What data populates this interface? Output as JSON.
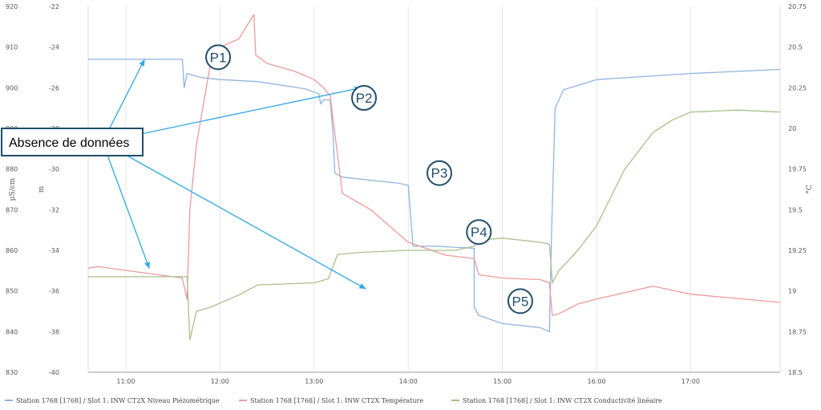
{
  "chart_data": {
    "type": "line",
    "x_axis": {
      "ticks": [
        "11:00",
        "12:00",
        "13:00",
        "14:00",
        "15:00",
        "16:00",
        "17:00"
      ],
      "tick_hours": [
        11,
        12,
        13,
        14,
        15,
        16,
        17
      ],
      "range_hours": [
        10.6,
        17.95
      ]
    },
    "y_axes": [
      {
        "id": "conductivity",
        "position": "left-outer",
        "label": "μS/cm",
        "range": [
          830,
          920
        ],
        "ticks": [
          920,
          910,
          900,
          890,
          880,
          870,
          860,
          850,
          840,
          830
        ]
      },
      {
        "id": "level",
        "position": "left-inner",
        "label": "m",
        "range": [
          -40,
          -22
        ],
        "ticks": [
          -22,
          -24,
          -26,
          -28,
          -30,
          -32,
          -34,
          -36,
          -38,
          -40
        ]
      },
      {
        "id": "temperature",
        "position": "right",
        "label": "°C",
        "range": [
          18.5,
          20.75
        ],
        "ticks": [
          20.75,
          20.5,
          20.25,
          20,
          19.75,
          19.5,
          19.25,
          19,
          18.75,
          18.5
        ]
      }
    ],
    "series": [
      {
        "name": "Station 1768 [1768] / Slot 1: INW CT2X Niveau Piézométrique",
        "axis": "level",
        "color": "#8fb4e3",
        "points": [
          [
            10.6,
            -24.6
          ],
          [
            11.6,
            -24.6
          ],
          [
            11.62,
            -26.0
          ],
          [
            11.65,
            -25.3
          ],
          [
            11.8,
            -25.5
          ],
          [
            12.0,
            -25.6
          ],
          [
            12.4,
            -25.7
          ],
          [
            12.9,
            -26.05
          ],
          [
            13.05,
            -26.3
          ],
          [
            13.07,
            -26.8
          ],
          [
            13.1,
            -26.6
          ],
          [
            13.17,
            -26.6
          ],
          [
            13.2,
            -28.2
          ],
          [
            13.22,
            -30.2
          ],
          [
            13.3,
            -30.4
          ],
          [
            13.9,
            -30.7
          ],
          [
            14.0,
            -30.8
          ],
          [
            14.05,
            -33.8
          ],
          [
            14.3,
            -33.8
          ],
          [
            14.7,
            -33.9
          ],
          [
            14.7,
            -36.8
          ],
          [
            14.75,
            -37.2
          ],
          [
            15.0,
            -37.6
          ],
          [
            15.4,
            -37.8
          ],
          [
            15.5,
            -38.0
          ],
          [
            15.52,
            -33.5
          ],
          [
            15.56,
            -27.0
          ],
          [
            15.65,
            -26.1
          ],
          [
            16.0,
            -25.6
          ],
          [
            17.0,
            -25.3
          ],
          [
            17.95,
            -25.1
          ]
        ]
      },
      {
        "name": "Station 1768 [1768] / Slot 1: INW CT2X Température",
        "axis": "temperature",
        "color": "#ef9a9a",
        "points": [
          [
            10.6,
            19.14
          ],
          [
            10.7,
            19.15
          ],
          [
            11.6,
            19.08
          ],
          [
            11.65,
            18.95
          ],
          [
            11.68,
            19.5
          ],
          [
            11.75,
            19.9
          ],
          [
            11.9,
            20.4
          ],
          [
            12.0,
            20.5
          ],
          [
            12.2,
            20.55
          ],
          [
            12.36,
            20.7
          ],
          [
            12.38,
            20.45
          ],
          [
            12.5,
            20.4
          ],
          [
            12.8,
            20.35
          ],
          [
            13.0,
            20.3
          ],
          [
            13.1,
            20.25
          ],
          [
            13.17,
            20.2
          ],
          [
            13.3,
            19.6
          ],
          [
            13.6,
            19.5
          ],
          [
            13.8,
            19.4
          ],
          [
            14.0,
            19.3
          ],
          [
            14.4,
            19.22
          ],
          [
            14.7,
            19.2
          ],
          [
            14.75,
            19.1
          ],
          [
            15.0,
            19.08
          ],
          [
            15.4,
            19.07
          ],
          [
            15.5,
            19.05
          ],
          [
            15.53,
            18.85
          ],
          [
            15.6,
            18.86
          ],
          [
            15.8,
            18.92
          ],
          [
            16.0,
            18.95
          ],
          [
            16.6,
            19.03
          ],
          [
            17.0,
            18.98
          ],
          [
            17.95,
            18.93
          ]
        ]
      },
      {
        "name": "Station 1768 [1768] / Slot 1: INW CT2X Conductivité linéaire",
        "axis": "conductivity",
        "color": "#a8c08a",
        "points": [
          [
            10.6,
            853.5
          ],
          [
            11.65,
            853.5
          ],
          [
            11.68,
            838
          ],
          [
            11.75,
            845
          ],
          [
            11.9,
            846
          ],
          [
            12.2,
            849
          ],
          [
            12.4,
            851.5
          ],
          [
            13.0,
            852
          ],
          [
            13.15,
            853
          ],
          [
            13.25,
            859
          ],
          [
            13.5,
            859.5
          ],
          [
            14.0,
            860
          ],
          [
            14.5,
            860
          ],
          [
            14.7,
            861
          ],
          [
            14.75,
            862.5
          ],
          [
            15.0,
            863
          ],
          [
            15.4,
            862
          ],
          [
            15.5,
            861.5
          ],
          [
            15.53,
            852
          ],
          [
            15.6,
            855
          ],
          [
            15.8,
            860
          ],
          [
            16.0,
            866
          ],
          [
            16.3,
            880
          ],
          [
            16.6,
            889
          ],
          [
            16.8,
            892
          ],
          [
            17.0,
            894
          ],
          [
            17.5,
            894.5
          ],
          [
            17.95,
            894
          ]
        ]
      }
    ],
    "annotations": [
      {
        "text": "P1",
        "x": 11.98,
        "y_level": -24.5
      },
      {
        "text": "P2",
        "x": 13.53,
        "y_level": -26.5
      },
      {
        "text": "P3",
        "x": 14.33,
        "y_level": -30.2
      },
      {
        "text": "P4",
        "x": 14.75,
        "y_level": -33.1
      },
      {
        "text": "P5",
        "x": 15.19,
        "y_level": -36.5
      }
    ],
    "note": {
      "text": "Absence de données",
      "arrow_targets": [
        {
          "x": 11.2,
          "y_level": -24.6
        },
        {
          "x": 11.25,
          "y_level": -34.9
        },
        {
          "x": 13.5,
          "y_level": -26.0
        },
        {
          "x": 13.55,
          "y_level": -35.9
        }
      ]
    },
    "legend_placement": "bottom",
    "grid": "vertical"
  }
}
